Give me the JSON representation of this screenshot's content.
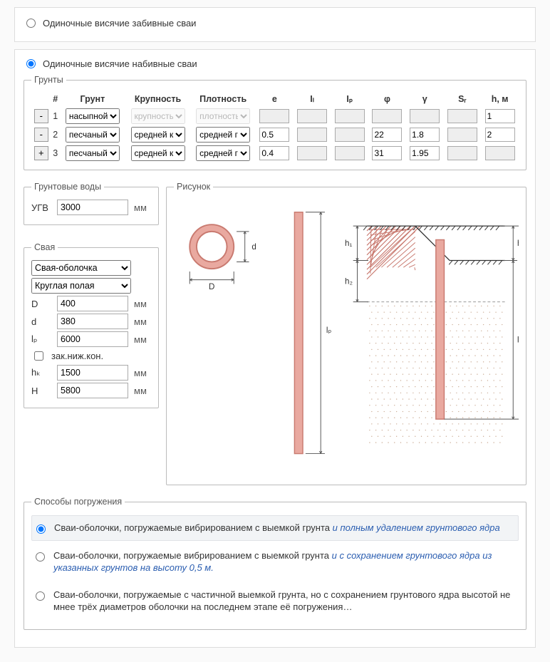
{
  "top_option_label": "Одиночные висячие забивные сваи",
  "main_option_label": "Одиночные висячие набивные сваи",
  "soils": {
    "legend": "Грунты",
    "headers": {
      "idx": "#",
      "soil": "Грунт",
      "grain": "Крупность",
      "density": "Плотность",
      "e": "e",
      "Il": "Iₗ",
      "Ip": "Iₚ",
      "phi": "φ",
      "gamma": "γ",
      "Sr": "Sᵣ",
      "h": "h, м"
    },
    "rows": [
      {
        "btn": "-",
        "idx": "1",
        "soil": "насыпной",
        "grain": "крупность",
        "density": "плотность",
        "grain_disabled": true,
        "density_disabled": true,
        "e": "",
        "Il": "",
        "Ip": "",
        "phi": "",
        "gamma": "",
        "Sr": "",
        "h": "1",
        "dis": {
          "e": true,
          "Il": true,
          "Ip": true,
          "phi": true,
          "gamma": true,
          "Sr": true,
          "h": false
        }
      },
      {
        "btn": "-",
        "idx": "2",
        "soil": "песчаный",
        "grain": "средней к",
        "density": "средней г",
        "grain_disabled": false,
        "density_disabled": false,
        "e": "0.5",
        "Il": "",
        "Ip": "",
        "phi": "22",
        "gamma": "1.8",
        "Sr": "",
        "h": "2",
        "dis": {
          "e": false,
          "Il": true,
          "Ip": true,
          "phi": false,
          "gamma": false,
          "Sr": true,
          "h": false
        }
      },
      {
        "btn": "+",
        "idx": "3",
        "soil": "песчаный",
        "grain": "средней к",
        "density": "средней г",
        "grain_disabled": false,
        "density_disabled": false,
        "e": "0.4",
        "Il": "",
        "Ip": "",
        "phi": "31",
        "gamma": "1.95",
        "Sr": "",
        "h": "",
        "dis": {
          "e": false,
          "Il": true,
          "Ip": true,
          "phi": false,
          "gamma": false,
          "Sr": true,
          "h": true
        }
      }
    ]
  },
  "gw": {
    "legend": "Грунтовые воды",
    "label": "УГВ",
    "value": "3000",
    "unit": "мм"
  },
  "pile": {
    "legend": "Свая",
    "type_options": [
      "Свая-оболочка"
    ],
    "type_value": "Свая-оболочка",
    "shape_options": [
      "Круглая полая"
    ],
    "shape_value": "Круглая полая",
    "D": {
      "label": "D",
      "value": "400",
      "unit": "мм"
    },
    "d": {
      "label": "d",
      "value": "380",
      "unit": "мм"
    },
    "lp": {
      "label": "lₚ",
      "value": "6000",
      "unit": "мм"
    },
    "chk": {
      "label": "зак.ниж.кон.",
      "checked": false
    },
    "hk": {
      "label": "hₖ",
      "value": "1500",
      "unit": "мм"
    },
    "H": {
      "label": "H",
      "value": "5800",
      "unit": "мм"
    }
  },
  "figure": {
    "legend": "Рисунок",
    "circle_color": "#e9a9a0",
    "circle_stroke": "#c97a70",
    "pile_fill": "#e9a9a0",
    "pile_stroke": "#c97a70",
    "hatch_color": "#c97a70",
    "dim_color": "#555",
    "labels": {
      "D": "D",
      "d": "d",
      "lp": "lₚ",
      "h1": "h₁",
      "h2": "h₂",
      "hk": "hₖ",
      "H": "H"
    }
  },
  "methods": {
    "legend": "Способы погружения",
    "items": [
      {
        "selected": true,
        "plain": "Сваи-оболочки, погружаемые вибрированием с выемкой грунта ",
        "ital": "и полным удалением грунтового ядра"
      },
      {
        "selected": false,
        "plain": "Сваи-оболочки, погружаемые вибрированием с выемкой грунта ",
        "ital": "и с сохранением грунтового ядра из указанных грунтов на высоту 0,5 м."
      },
      {
        "selected": false,
        "plain": "Сваи-оболочки, погружаемые с частичной выемкой грунта, но с сохранением грунтового ядра высотой не мнее трёх диаметров оболочки на последнем этапе её погружения…",
        "ital": ""
      }
    ]
  }
}
